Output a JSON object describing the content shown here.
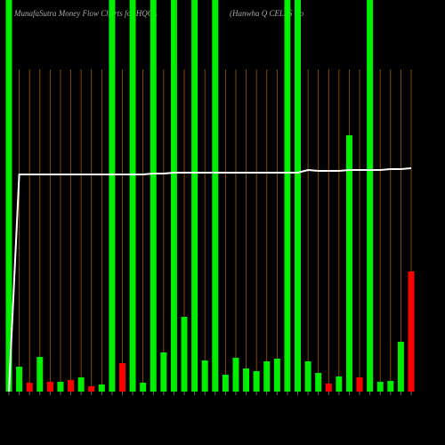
{
  "chart_data": {
    "type": "bar",
    "title": "MunafaSutra  Money Flow  Charts for HQCL",
    "subtitle": "(Hanwha  Q CELLS Co",
    "categories": [
      null,
      null,
      null,
      null,
      null,
      null,
      null,
      null,
      null,
      null,
      null,
      null,
      null,
      null,
      null,
      null,
      null,
      null,
      null,
      null,
      null,
      null,
      null,
      null,
      null,
      null,
      null,
      null,
      null,
      null,
      null,
      null,
      null,
      null,
      null,
      null,
      null,
      null,
      null,
      null
    ],
    "ylim": [
      0,
      440
    ],
    "series": [
      {
        "type": "bar",
        "values": [
          440,
          28,
          10,
          39,
          11,
          11,
          13,
          16,
          6,
          8,
          440,
          32,
          440,
          10,
          440,
          44,
          440,
          84,
          440,
          35,
          440,
          19,
          38,
          26,
          23,
          34,
          37,
          440,
          440,
          34,
          21,
          9,
          17,
          288,
          16,
          440,
          11,
          12,
          56,
          135
        ],
        "colors": [
          "#00ee00",
          "#00ee00",
          "#ff0000",
          "#00ee00",
          "#ff0000",
          "#00ee00",
          "#ff0000",
          "#00ee00",
          "#ff0000",
          "#00ee00",
          "#00ee00",
          "#ff0000",
          "#00ee00",
          "#00ee00",
          "#00ee00",
          "#00ee00",
          "#00ee00",
          "#00ee00",
          "#00ee00",
          "#00ee00",
          "#00ee00",
          "#00ee00",
          "#00ee00",
          "#00ee00",
          "#00ee00",
          "#00ee00",
          "#00ee00",
          "#00ee00",
          "#00ee00",
          "#00ee00",
          "#00ee00",
          "#ff0000",
          "#00ee00",
          "#00ee00",
          "#ff0000",
          "#00ee00",
          "#00ee00",
          "#00ee00",
          "#00ee00",
          "#ff0000"
        ]
      },
      {
        "type": "line",
        "color": "#ffffff",
        "values": [
          0,
          244,
          244,
          244,
          244,
          244,
          244,
          244,
          244,
          244,
          244,
          244,
          244,
          244,
          245,
          245,
          246,
          246,
          246,
          246,
          246,
          246,
          246,
          246,
          246,
          246,
          246,
          246,
          246,
          249,
          248,
          248,
          248,
          249,
          249,
          249,
          249,
          250,
          250,
          251
        ]
      }
    ]
  }
}
